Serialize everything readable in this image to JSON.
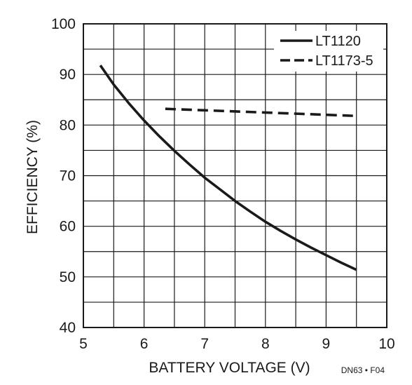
{
  "chart_data": {
    "type": "line",
    "xlabel": "BATTERY VOLTAGE (V)",
    "ylabel": "EFFICIENCY (%)",
    "xlim": [
      5,
      10
    ],
    "ylim": [
      40,
      100
    ],
    "x_ticks": [
      "5",
      "6",
      "7",
      "8",
      "9",
      "10"
    ],
    "y_ticks": [
      "40",
      "50",
      "60",
      "70",
      "80",
      "90",
      "100"
    ],
    "grid": "on",
    "grid_minor_x": 0.5,
    "grid_minor_y": 5,
    "legend_position": "top-right",
    "figure_id": "DN63 • F04",
    "series": [
      {
        "name": "LT1120",
        "style": "solid",
        "color": "#1a1a1a",
        "x": [
          5.28,
          5.5,
          5.75,
          6.0,
          6.25,
          6.5,
          6.75,
          7.0,
          7.25,
          7.5,
          7.75,
          8.0,
          8.25,
          8.5,
          8.75,
          9.0,
          9.25,
          9.5
        ],
        "y": [
          91.8,
          88.0,
          84.3,
          80.9,
          77.8,
          74.9,
          72.2,
          69.6,
          67.3,
          65.0,
          62.9,
          60.9,
          59.1,
          57.4,
          55.8,
          54.3,
          52.8,
          51.4
        ]
      },
      {
        "name": "LT1173-5",
        "style": "dashed",
        "color": "#1a1a1a",
        "x": [
          6.35,
          9.5
        ],
        "y": [
          83.2,
          81.8
        ]
      }
    ]
  }
}
